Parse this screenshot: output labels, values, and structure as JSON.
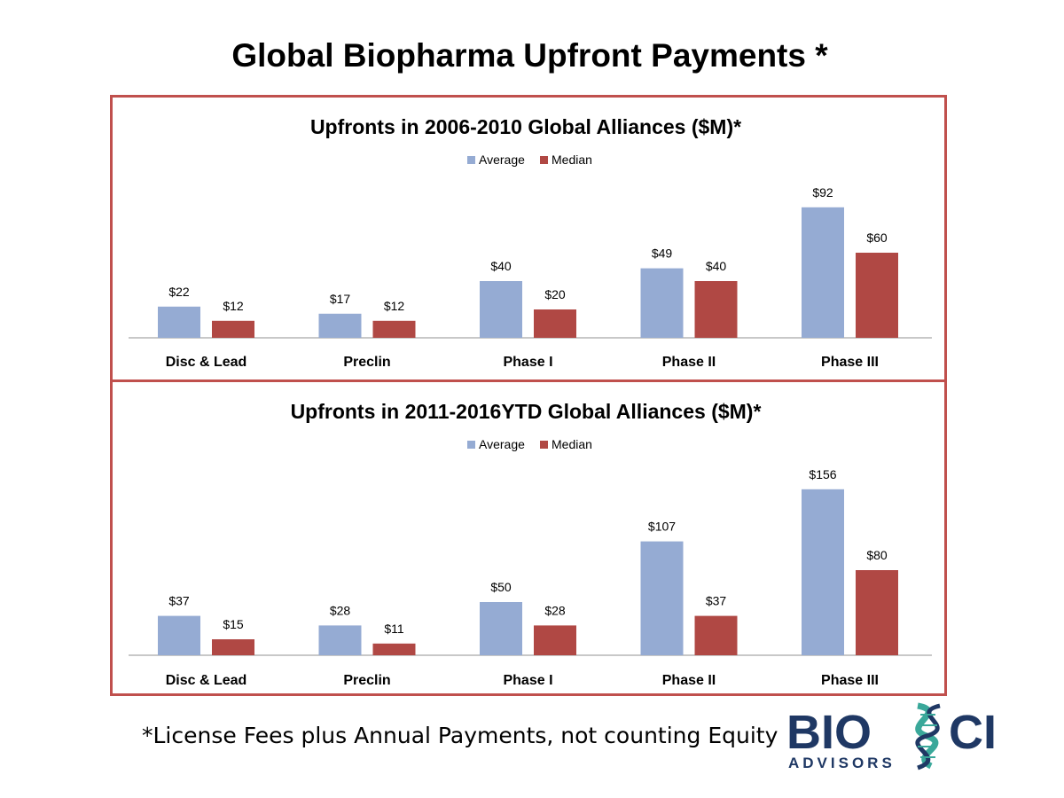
{
  "page": {
    "title": "Global Biopharma Upfront Payments *",
    "footnote": "*License Fees plus Annual Payments, not counting Equity"
  },
  "logo": {
    "text_main_left": "BIO",
    "text_main_right": "CI",
    "text_sub": "ADVISORS",
    "colors": {
      "navy": "#1f3864",
      "teal": "#3aa89a"
    }
  },
  "chart_data": [
    {
      "type": "bar",
      "title": "Upfronts in 2006-2010 Global Alliances ($M)*",
      "categories": [
        "Disc & Lead",
        "Preclin",
        "Phase I",
        "Phase II",
        "Phase III"
      ],
      "series": [
        {
          "name": "Average",
          "color": "#95abd3",
          "values": [
            22,
            17,
            40,
            49,
            92
          ],
          "labels": [
            "$22",
            "$17",
            "$40",
            "$49",
            "$92"
          ]
        },
        {
          "name": "Median",
          "color": "#b04844",
          "values": [
            12,
            12,
            20,
            40,
            60
          ],
          "labels": [
            "$12",
            "$12",
            "$20",
            "$40",
            "$60"
          ]
        }
      ],
      "ylim": [
        0,
        100
      ],
      "legend": "top-center",
      "grid": false
    },
    {
      "type": "bar",
      "title": "Upfronts in 2011-2016YTD Global Alliances ($M)*",
      "categories": [
        "Disc & Lead",
        "Preclin",
        "Phase I",
        "Phase II",
        "Phase III"
      ],
      "series": [
        {
          "name": "Average",
          "color": "#95abd3",
          "values": [
            37,
            28,
            50,
            107,
            156
          ],
          "labels": [
            "$37",
            "$28",
            "$50",
            "$107",
            "$156"
          ]
        },
        {
          "name": "Median",
          "color": "#b04844",
          "values": [
            15,
            11,
            28,
            37,
            80
          ],
          "labels": [
            "$15",
            "$11",
            "$28",
            "$37",
            "$80"
          ]
        }
      ],
      "ylim": [
        0,
        160
      ],
      "legend": "top-center",
      "grid": false
    }
  ]
}
